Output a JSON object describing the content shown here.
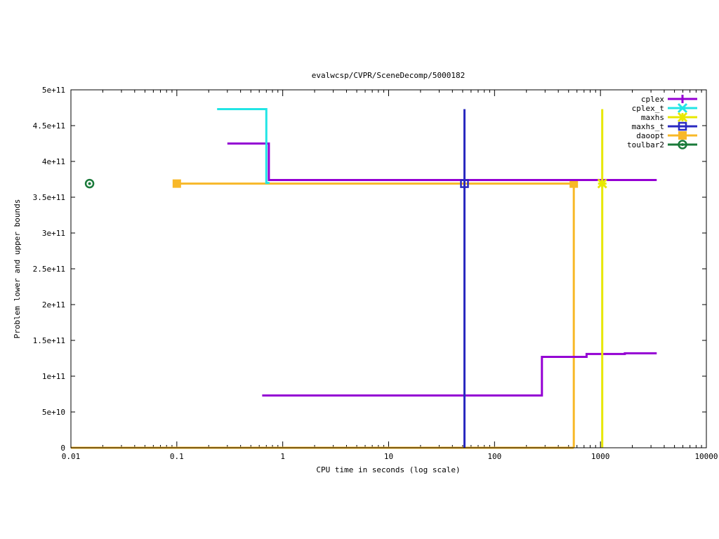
{
  "chart_data": {
    "type": "line",
    "title": "evalwcsp/CVPR/SceneDecomp/5000182",
    "xlabel": "CPU time in seconds (log scale)",
    "ylabel": "Problem lower and upper bounds",
    "xscale": "log",
    "xlim": [
      0.01,
      10000
    ],
    "ylim": [
      0,
      500000000000
    ],
    "x_ticks": [
      0.01,
      0.1,
      1,
      10,
      100,
      1000,
      10000
    ],
    "x_tick_labels": [
      "0.01",
      "0.1",
      "1",
      "10",
      "100",
      "1000",
      "10000"
    ],
    "y_ticks": [
      0,
      50000000000,
      100000000000,
      150000000000,
      200000000000,
      250000000000,
      300000000000,
      350000000000,
      400000000000,
      450000000000,
      500000000000
    ],
    "y_tick_labels": [
      "0",
      "5e+10",
      "1e+11",
      "1.5e+11",
      "2e+11",
      "2.5e+11",
      "3e+11",
      "3.5e+11",
      "4e+11",
      "4.5e+11",
      "5e+11"
    ],
    "legend_position": "top-right",
    "series": [
      {
        "name": "cplex",
        "color": "#9400d3",
        "marker": "plus",
        "upper": [
          [
            0.3,
            425000000000
          ],
          [
            0.74,
            425000000000
          ],
          [
            0.74,
            374000000000
          ],
          [
            3400,
            374000000000
          ]
        ],
        "lower": [
          [
            0.64,
            73000000000
          ],
          [
            280,
            73000000000
          ],
          [
            280,
            127000000000
          ],
          [
            740,
            127000000000
          ],
          [
            740,
            131000000000
          ],
          [
            1700,
            131000000000
          ],
          [
            1700,
            132000000000
          ],
          [
            3400,
            132000000000
          ]
        ],
        "points": []
      },
      {
        "name": "cplex_t",
        "color": "#22e5e5",
        "marker": "x",
        "upper": [
          [
            0.24,
            473000000000
          ],
          [
            0.7,
            473000000000
          ],
          [
            0.7,
            370000000000
          ],
          [
            0.75,
            370000000000
          ]
        ],
        "lower": [],
        "points": []
      },
      {
        "name": "maxhs",
        "color": "#e8e800",
        "marker": "star",
        "upper": [
          [
            1040,
            473000000000
          ],
          [
            1040,
            0
          ]
        ],
        "lower": [],
        "points": [
          [
            1040,
            369000000000
          ]
        ]
      },
      {
        "name": "maxhs_t",
        "color": "#2a2ac0",
        "marker": "square",
        "upper": [
          [
            52,
            473000000000
          ],
          [
            52,
            0
          ]
        ],
        "lower": [],
        "points": [
          [
            52,
            369000000000
          ]
        ]
      },
      {
        "name": "daoopt",
        "color": "#f8b828",
        "marker": "filled-square",
        "upper": [
          [
            0.1,
            369000000000
          ],
          [
            560,
            369000000000
          ],
          [
            560,
            0
          ]
        ],
        "lower": [
          [
            0.01,
            0
          ],
          [
            560,
            0
          ]
        ],
        "points": [
          [
            0.1,
            369000000000
          ],
          [
            560,
            369000000000
          ]
        ]
      },
      {
        "name": "toulbar2",
        "color": "#1a7a3a",
        "marker": "circle",
        "upper": [],
        "lower": [],
        "points": [
          [
            0.015,
            369000000000
          ]
        ]
      }
    ]
  }
}
